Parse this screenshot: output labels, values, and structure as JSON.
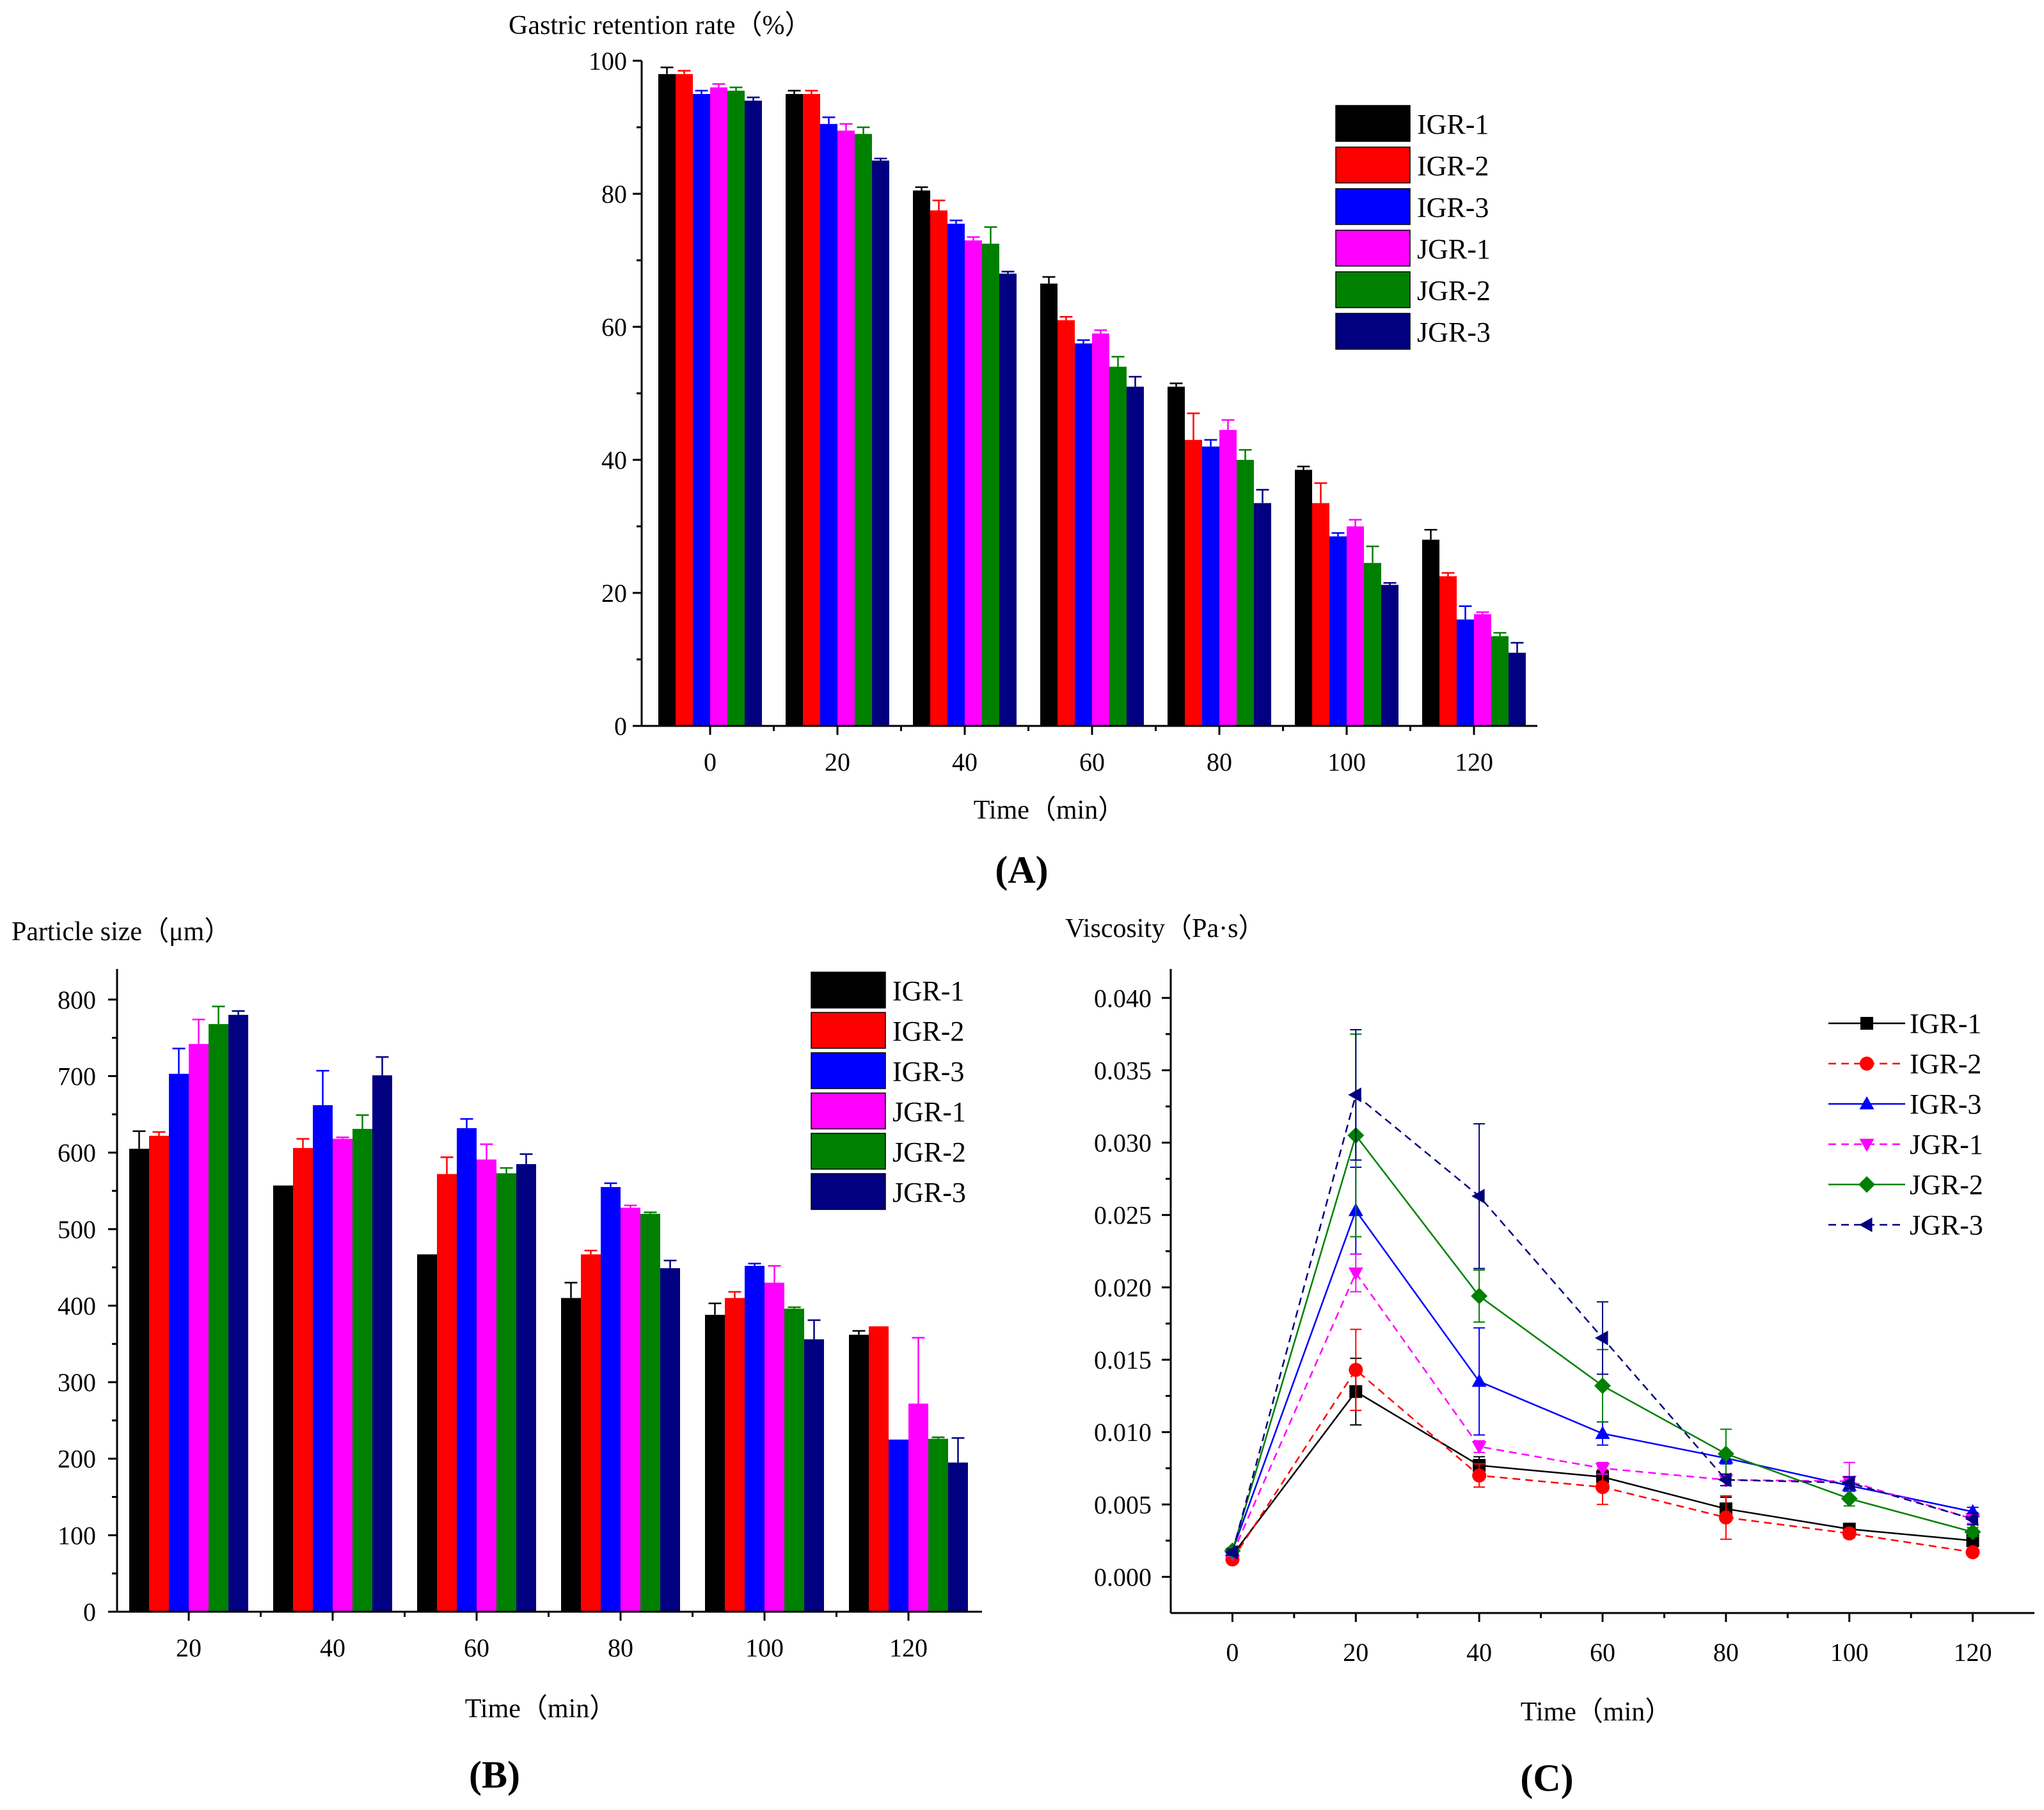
{
  "chart_data": [
    {
      "type": "bar",
      "panel_label": "(A)",
      "title": "Gastric retention rate（%）",
      "xlabel": "Time（min）",
      "ylabel": "Gastric retention rate（%）",
      "categories": [
        "0",
        "20",
        "40",
        "60",
        "80",
        "100",
        "120"
      ],
      "ylim": [
        0,
        100
      ],
      "yticks": [
        0,
        20,
        40,
        60,
        80,
        100
      ],
      "legend_position": "top-right",
      "error_bars": true,
      "series": [
        {
          "name": "IGR-1",
          "color": "#000000",
          "values": [
            98,
            95,
            80.5,
            66.5,
            51,
            38.5,
            28
          ],
          "errors": [
            1,
            0.5,
            0.5,
            1,
            0.5,
            0.5,
            1.5
          ]
        },
        {
          "name": "IGR-2",
          "color": "#ff0000",
          "values": [
            98,
            95,
            77.5,
            61,
            43,
            33.5,
            22.5
          ],
          "errors": [
            0.5,
            0.5,
            1.5,
            0.5,
            4,
            3,
            0.5
          ]
        },
        {
          "name": "IGR-3",
          "color": "#0000ff",
          "values": [
            95,
            90.5,
            75.5,
            57.5,
            42,
            28.5,
            16
          ],
          "errors": [
            0.5,
            1,
            0.5,
            0.5,
            1,
            0.5,
            2
          ]
        },
        {
          "name": "JGR-1",
          "color": "#ff00ff",
          "values": [
            96,
            89.5,
            73,
            59,
            44.5,
            30,
            16.8
          ],
          "errors": [
            0.5,
            1,
            0.5,
            0.5,
            1.5,
            1,
            0.3
          ]
        },
        {
          "name": "JGR-2",
          "color": "#008000",
          "values": [
            95.5,
            89,
            72.5,
            54,
            40,
            24.5,
            13.5
          ],
          "errors": [
            0.5,
            1,
            2.5,
            1.5,
            1.5,
            2.5,
            0.5
          ]
        },
        {
          "name": "JGR-3",
          "color": "#000080",
          "values": [
            94,
            85,
            68,
            51,
            33.5,
            21.2,
            11
          ],
          "errors": [
            0.5,
            0.3,
            0.3,
            1.5,
            2,
            0.3,
            1.5
          ]
        }
      ]
    },
    {
      "type": "bar",
      "panel_label": "(B)",
      "title": "Particle size（μm）",
      "xlabel": "Time（min）",
      "ylabel": "Particle size（μm）",
      "categories": [
        "20",
        "40",
        "60",
        "80",
        "100",
        "120"
      ],
      "ylim": [
        0,
        840
      ],
      "yticks": [
        0,
        100,
        200,
        300,
        400,
        500,
        600,
        700,
        800
      ],
      "legend_position": "top-right",
      "error_bars": true,
      "series": [
        {
          "name": "IGR-1",
          "color": "#000000",
          "values": [
            605,
            557,
            467,
            410,
            388,
            362
          ],
          "errors": [
            23,
            0,
            0,
            20,
            15,
            5
          ]
        },
        {
          "name": "IGR-2",
          "color": "#ff0000",
          "values": [
            622,
            606,
            572,
            467,
            410,
            373
          ],
          "errors": [
            5,
            12,
            22,
            5,
            8,
            0
          ]
        },
        {
          "name": "IGR-3",
          "color": "#0000ff",
          "values": [
            703,
            662,
            632,
            555,
            452,
            225
          ],
          "errors": [
            33,
            45,
            12,
            5,
            3,
            0
          ]
        },
        {
          "name": "JGR-1",
          "color": "#ff00ff",
          "values": [
            742,
            618,
            591,
            528,
            430,
            272
          ],
          "errors": [
            32,
            2,
            20,
            3,
            22,
            86
          ]
        },
        {
          "name": "JGR-2",
          "color": "#008000",
          "values": [
            768,
            631,
            573,
            520,
            396,
            226
          ],
          "errors": [
            23,
            18,
            7,
            2,
            2,
            2
          ]
        },
        {
          "name": "JGR-3",
          "color": "#000080",
          "values": [
            780,
            701,
            585,
            449,
            356,
            195
          ],
          "errors": [
            5,
            24,
            13,
            10,
            25,
            32
          ]
        }
      ]
    },
    {
      "type": "line",
      "panel_label": "(C)",
      "title": "Viscosity（Pa·s）",
      "xlabel": "Time（min）",
      "ylabel": "Viscosity（Pa·s）",
      "x": [
        0,
        20,
        40,
        60,
        80,
        100,
        120
      ],
      "xlim": [
        -10,
        130
      ],
      "xticks": [
        0,
        20,
        40,
        60,
        80,
        100,
        120
      ],
      "ylim": [
        -0.0025,
        0.042
      ],
      "yticks": [
        "0.000",
        "0.005",
        "0.010",
        "0.015",
        "0.020",
        "0.025",
        "0.030",
        "0.035",
        "0.040"
      ],
      "legend_position": "top-right",
      "error_bars": true,
      "series": [
        {
          "name": "IGR-1",
          "color": "#000000",
          "marker": "square",
          "values": [
            0.0015,
            0.0128,
            0.0077,
            0.0069,
            0.0047,
            0.0033,
            0.0025
          ],
          "errors": [
            0.0002,
            0.0023,
            0.0006,
            0.0004,
            0.0008,
            0.0003,
            0.0002
          ]
        },
        {
          "name": "IGR-2",
          "color": "#ff0000",
          "marker": "circle",
          "values": [
            0.0012,
            0.0143,
            0.007,
            0.0062,
            0.0041,
            0.003,
            0.0017
          ],
          "errors": [
            0.0002,
            0.0028,
            0.0008,
            0.0012,
            0.0015,
            0.0003,
            0.0002
          ]
        },
        {
          "name": "IGR-3",
          "color": "#0000ff",
          "marker": "triangle-up",
          "values": [
            0.0018,
            0.0253,
            0.0135,
            0.0099,
            0.0082,
            0.0063,
            0.0045
          ],
          "errors": [
            0.0002,
            0.003,
            0.0037,
            0.0008,
            0.0004,
            0.0004,
            0.0003
          ]
        },
        {
          "name": "JGR-1",
          "color": "#ff00ff",
          "marker": "triangle-down",
          "values": [
            0.0016,
            0.021,
            0.009,
            0.0075,
            0.0067,
            0.0066,
            0.004
          ],
          "errors": [
            0.0002,
            0.0013,
            0.0004,
            0.0004,
            0.0004,
            0.0013,
            0.0003
          ]
        },
        {
          "name": "JGR-2",
          "color": "#008000",
          "marker": "diamond",
          "values": [
            0.0018,
            0.0305,
            0.0194,
            0.0132,
            0.0085,
            0.0054,
            0.0031
          ],
          "errors": [
            0.0002,
            0.007,
            0.0018,
            0.0025,
            0.0017,
            0.0005,
            0.0003
          ]
        },
        {
          "name": "JGR-3",
          "color": "#000080",
          "marker": "triangle-left",
          "values": [
            0.0017,
            0.0333,
            0.0263,
            0.0165,
            0.0067,
            0.0065,
            0.004
          ],
          "errors": [
            0.0002,
            0.0045,
            0.005,
            0.0025,
            0.0004,
            0.0004,
            0.0004
          ]
        }
      ]
    }
  ]
}
